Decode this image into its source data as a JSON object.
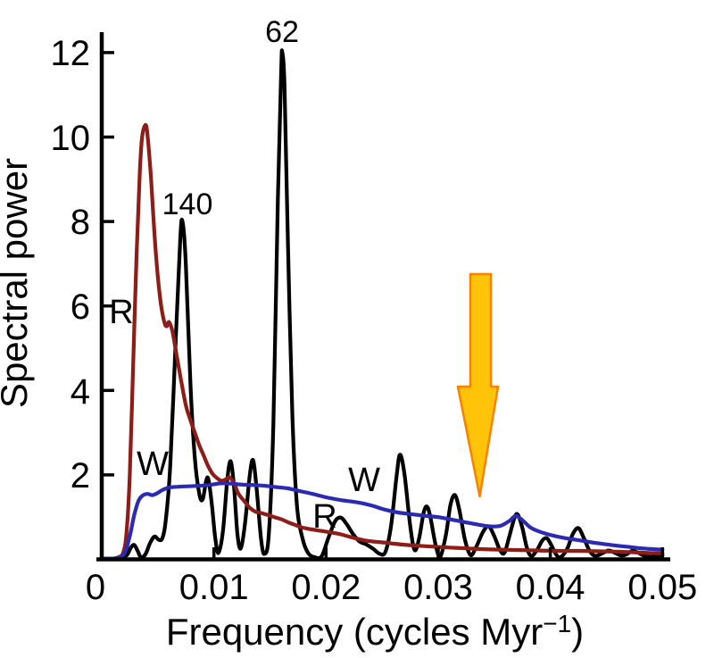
{
  "figure": {
    "background": "#ffffff",
    "description_visible_text_only": true
  },
  "chart_data": {
    "type": "line",
    "title": "",
    "xlabel_main": "Frequency (cycles Myr",
    "xlabel_sup": "−1",
    "xlabel_close": ")",
    "ylabel": "Spectral power",
    "xlim": [
      0,
      0.05
    ],
    "ylim": [
      0,
      12
    ],
    "grid": false,
    "legend_position": "none",
    "x_tick_values": [
      0,
      0.01,
      0.02,
      0.03,
      0.04,
      0.05
    ],
    "x_tick_labels": [
      "0",
      "0.01",
      "0.02",
      "0.03",
      "0.04",
      "0.05"
    ],
    "y_tick_values": [
      2,
      4,
      6,
      8,
      10,
      12
    ],
    "y_tick_labels": [
      "2",
      "4",
      "6",
      "8",
      "10",
      "12"
    ],
    "annotations": [
      {
        "text": "62",
        "role": "peak-period-label",
        "f": 0.0161,
        "power": 12.0
      },
      {
        "text": "140",
        "role": "peak-period-label",
        "f": 0.0072,
        "power": 8.0
      },
      {
        "text": "R",
        "role": "curve-label",
        "f": 0.0018,
        "power": 5.9
      },
      {
        "text": "W",
        "role": "curve-label",
        "f": 0.0045,
        "power": 2.25
      },
      {
        "text": "R",
        "role": "curve-label",
        "f": 0.0199,
        "power": 1.05
      },
      {
        "text": "W",
        "role": "curve-label",
        "f": 0.0234,
        "power": 1.95
      }
    ],
    "arrow_marker": {
      "f": 0.0337,
      "power_top": 6.8,
      "power_tip": 1.5,
      "fill": "#ffc30a",
      "stroke": "#f98100"
    },
    "series": [
      {
        "id": "spectrum",
        "name": "black spectrum (peaks labeled 62 and 140)",
        "color": "#000000",
        "width": 4.2,
        "points": [
          [
            0.0,
            0.02
          ],
          [
            0.0012,
            0.02
          ],
          [
            0.0019,
            0.04
          ],
          [
            0.0023,
            0.12
          ],
          [
            0.0026,
            0.28
          ],
          [
            0.0029,
            0.34
          ],
          [
            0.0032,
            0.2
          ],
          [
            0.0035,
            0.05
          ],
          [
            0.0039,
            0.12
          ],
          [
            0.0043,
            0.38
          ],
          [
            0.0047,
            0.54
          ],
          [
            0.0051,
            0.46
          ],
          [
            0.0054,
            0.5
          ],
          [
            0.0057,
            0.9
          ],
          [
            0.0061,
            2.2
          ],
          [
            0.0066,
            5.2
          ],
          [
            0.007,
            7.6
          ],
          [
            0.0072,
            8.0
          ],
          [
            0.0075,
            7.0
          ],
          [
            0.0079,
            4.2
          ],
          [
            0.0083,
            2.4
          ],
          [
            0.0087,
            1.55
          ],
          [
            0.009,
            1.42
          ],
          [
            0.0093,
            1.85
          ],
          [
            0.0095,
            1.9
          ],
          [
            0.0098,
            1.35
          ],
          [
            0.0101,
            0.55
          ],
          [
            0.0104,
            0.15
          ],
          [
            0.0108,
            0.65
          ],
          [
            0.0112,
            1.9
          ],
          [
            0.0115,
            2.32
          ],
          [
            0.0118,
            1.7
          ],
          [
            0.0121,
            0.6
          ],
          [
            0.0124,
            0.26
          ],
          [
            0.0128,
            0.9
          ],
          [
            0.0132,
            2.0
          ],
          [
            0.0135,
            2.35
          ],
          [
            0.0138,
            1.7
          ],
          [
            0.0142,
            0.5
          ],
          [
            0.0145,
            0.13
          ],
          [
            0.0149,
            0.6
          ],
          [
            0.0153,
            3.2
          ],
          [
            0.0157,
            8.5
          ],
          [
            0.016,
            11.6
          ],
          [
            0.0161,
            12.0
          ],
          [
            0.0163,
            11.2
          ],
          [
            0.0166,
            7.5
          ],
          [
            0.017,
            3.4
          ],
          [
            0.0174,
            1.3
          ],
          [
            0.0179,
            0.5
          ],
          [
            0.0184,
            0.15
          ],
          [
            0.019,
            0.05
          ],
          [
            0.0196,
            0.07
          ],
          [
            0.0202,
            0.5
          ],
          [
            0.0208,
            0.9
          ],
          [
            0.0213,
            0.99
          ],
          [
            0.0218,
            0.85
          ],
          [
            0.0224,
            0.6
          ],
          [
            0.023,
            0.42
          ],
          [
            0.0236,
            0.35
          ],
          [
            0.0242,
            0.25
          ],
          [
            0.0248,
            0.13
          ],
          [
            0.0253,
            0.18
          ],
          [
            0.0258,
            0.8
          ],
          [
            0.0263,
            2.0
          ],
          [
            0.0266,
            2.48
          ],
          [
            0.027,
            2.0
          ],
          [
            0.0275,
            0.8
          ],
          [
            0.0279,
            0.22
          ],
          [
            0.0283,
            0.5
          ],
          [
            0.0287,
            1.1
          ],
          [
            0.029,
            1.25
          ],
          [
            0.0293,
            1.0
          ],
          [
            0.0298,
            0.3
          ],
          [
            0.0302,
            0.07
          ],
          [
            0.0307,
            0.6
          ],
          [
            0.0311,
            1.3
          ],
          [
            0.0315,
            1.52
          ],
          [
            0.0319,
            1.15
          ],
          [
            0.0324,
            0.45
          ],
          [
            0.0329,
            0.1
          ],
          [
            0.0334,
            0.3
          ],
          [
            0.034,
            0.65
          ],
          [
            0.0345,
            0.78
          ],
          [
            0.035,
            0.55
          ],
          [
            0.0355,
            0.22
          ],
          [
            0.0359,
            0.15
          ],
          [
            0.0363,
            0.5
          ],
          [
            0.0368,
            0.98
          ],
          [
            0.0371,
            1.06
          ],
          [
            0.0375,
            0.75
          ],
          [
            0.0379,
            0.28
          ],
          [
            0.0383,
            0.08
          ],
          [
            0.0388,
            0.22
          ],
          [
            0.0393,
            0.45
          ],
          [
            0.0397,
            0.5
          ],
          [
            0.0401,
            0.33
          ],
          [
            0.0405,
            0.12
          ],
          [
            0.0409,
            0.05
          ],
          [
            0.0415,
            0.25
          ],
          [
            0.042,
            0.6
          ],
          [
            0.0425,
            0.74
          ],
          [
            0.043,
            0.5
          ],
          [
            0.0435,
            0.2
          ],
          [
            0.044,
            0.08
          ],
          [
            0.0446,
            0.14
          ],
          [
            0.0452,
            0.21
          ],
          [
            0.0458,
            0.15
          ],
          [
            0.0463,
            0.09
          ],
          [
            0.0468,
            0.12
          ],
          [
            0.0473,
            0.2
          ],
          [
            0.0478,
            0.16
          ],
          [
            0.0484,
            0.08
          ],
          [
            0.049,
            0.06
          ],
          [
            0.0495,
            0.08
          ],
          [
            0.05,
            0.1
          ]
        ]
      },
      {
        "id": "r-curve",
        "name": "R curve (dark red)",
        "color": "#8e1c17",
        "width": 4.2,
        "points": [
          [
            0.0,
            0.02
          ],
          [
            0.001,
            0.02
          ],
          [
            0.0015,
            0.05
          ],
          [
            0.0019,
            0.15
          ],
          [
            0.0022,
            0.6
          ],
          [
            0.0025,
            2.0
          ],
          [
            0.0028,
            4.6
          ],
          [
            0.0031,
            7.2
          ],
          [
            0.0034,
            9.2
          ],
          [
            0.0036,
            10.0
          ],
          [
            0.0039,
            10.29
          ],
          [
            0.0041,
            10.0
          ],
          [
            0.0044,
            9.0
          ],
          [
            0.0047,
            7.7
          ],
          [
            0.005,
            6.7
          ],
          [
            0.0053,
            6.0
          ],
          [
            0.0056,
            5.6
          ],
          [
            0.0058,
            5.52
          ],
          [
            0.006,
            5.62
          ],
          [
            0.0063,
            5.4
          ],
          [
            0.0067,
            4.8
          ],
          [
            0.0071,
            4.2
          ],
          [
            0.0075,
            3.65
          ],
          [
            0.0079,
            3.3
          ],
          [
            0.0083,
            3.0
          ],
          [
            0.0087,
            2.7
          ],
          [
            0.0091,
            2.45
          ],
          [
            0.0095,
            2.2
          ],
          [
            0.0099,
            2.02
          ],
          [
            0.0103,
            1.92
          ],
          [
            0.0107,
            1.86
          ],
          [
            0.0111,
            1.9
          ],
          [
            0.0114,
            1.94
          ],
          [
            0.0118,
            1.8
          ],
          [
            0.0122,
            1.55
          ],
          [
            0.0127,
            1.38
          ],
          [
            0.0132,
            1.22
          ],
          [
            0.0137,
            1.13
          ],
          [
            0.0142,
            1.1
          ],
          [
            0.0148,
            1.05
          ],
          [
            0.0154,
            1.0
          ],
          [
            0.016,
            0.95
          ],
          [
            0.0166,
            0.88
          ],
          [
            0.0172,
            0.82
          ],
          [
            0.0178,
            0.76
          ],
          [
            0.0185,
            0.72
          ],
          [
            0.0192,
            0.69
          ],
          [
            0.0199,
            0.66
          ],
          [
            0.0206,
            0.63
          ],
          [
            0.0212,
            0.6
          ],
          [
            0.0219,
            0.55
          ],
          [
            0.0226,
            0.5
          ],
          [
            0.0234,
            0.45
          ],
          [
            0.0242,
            0.42
          ],
          [
            0.0251,
            0.4
          ],
          [
            0.0261,
            0.37
          ],
          [
            0.0272,
            0.34
          ],
          [
            0.0284,
            0.32
          ],
          [
            0.0296,
            0.3
          ],
          [
            0.031,
            0.28
          ],
          [
            0.0325,
            0.26
          ],
          [
            0.034,
            0.24
          ],
          [
            0.0356,
            0.23
          ],
          [
            0.0372,
            0.22
          ],
          [
            0.039,
            0.21
          ],
          [
            0.0408,
            0.2
          ],
          [
            0.0426,
            0.2
          ],
          [
            0.0444,
            0.19
          ],
          [
            0.0462,
            0.18
          ],
          [
            0.048,
            0.16
          ],
          [
            0.05,
            0.14
          ]
        ]
      },
      {
        "id": "w-curve",
        "name": "W curve (blue)",
        "color": "#2a2ab4",
        "width": 4.2,
        "points": [
          [
            0.0,
            0.02
          ],
          [
            0.0012,
            0.02
          ],
          [
            0.0017,
            0.06
          ],
          [
            0.0021,
            0.18
          ],
          [
            0.0025,
            0.55
          ],
          [
            0.0029,
            1.05
          ],
          [
            0.0033,
            1.4
          ],
          [
            0.0037,
            1.52
          ],
          [
            0.0041,
            1.55
          ],
          [
            0.0045,
            1.52
          ],
          [
            0.0049,
            1.56
          ],
          [
            0.0054,
            1.64
          ],
          [
            0.006,
            1.7
          ],
          [
            0.0068,
            1.72
          ],
          [
            0.0076,
            1.73
          ],
          [
            0.0086,
            1.74
          ],
          [
            0.0096,
            1.76
          ],
          [
            0.0106,
            1.8
          ],
          [
            0.0116,
            1.79
          ],
          [
            0.0126,
            1.77
          ],
          [
            0.0136,
            1.76
          ],
          [
            0.0146,
            1.74
          ],
          [
            0.0156,
            1.71
          ],
          [
            0.0166,
            1.68
          ],
          [
            0.0176,
            1.62
          ],
          [
            0.0188,
            1.55
          ],
          [
            0.02,
            1.47
          ],
          [
            0.0214,
            1.4
          ],
          [
            0.0228,
            1.35
          ],
          [
            0.024,
            1.28
          ],
          [
            0.0252,
            1.18
          ],
          [
            0.0264,
            1.11
          ],
          [
            0.0276,
            1.07
          ],
          [
            0.0288,
            1.03
          ],
          [
            0.03,
            1.0
          ],
          [
            0.0312,
            0.94
          ],
          [
            0.0324,
            0.88
          ],
          [
            0.0336,
            0.82
          ],
          [
            0.0347,
            0.78
          ],
          [
            0.0356,
            0.8
          ],
          [
            0.0364,
            0.92
          ],
          [
            0.0369,
            1.03
          ],
          [
            0.0375,
            0.93
          ],
          [
            0.0382,
            0.76
          ],
          [
            0.039,
            0.66
          ],
          [
            0.04,
            0.58
          ],
          [
            0.0412,
            0.51
          ],
          [
            0.0426,
            0.45
          ],
          [
            0.044,
            0.39
          ],
          [
            0.0454,
            0.34
          ],
          [
            0.0468,
            0.3
          ],
          [
            0.0482,
            0.26
          ],
          [
            0.05,
            0.23
          ]
        ]
      }
    ]
  }
}
